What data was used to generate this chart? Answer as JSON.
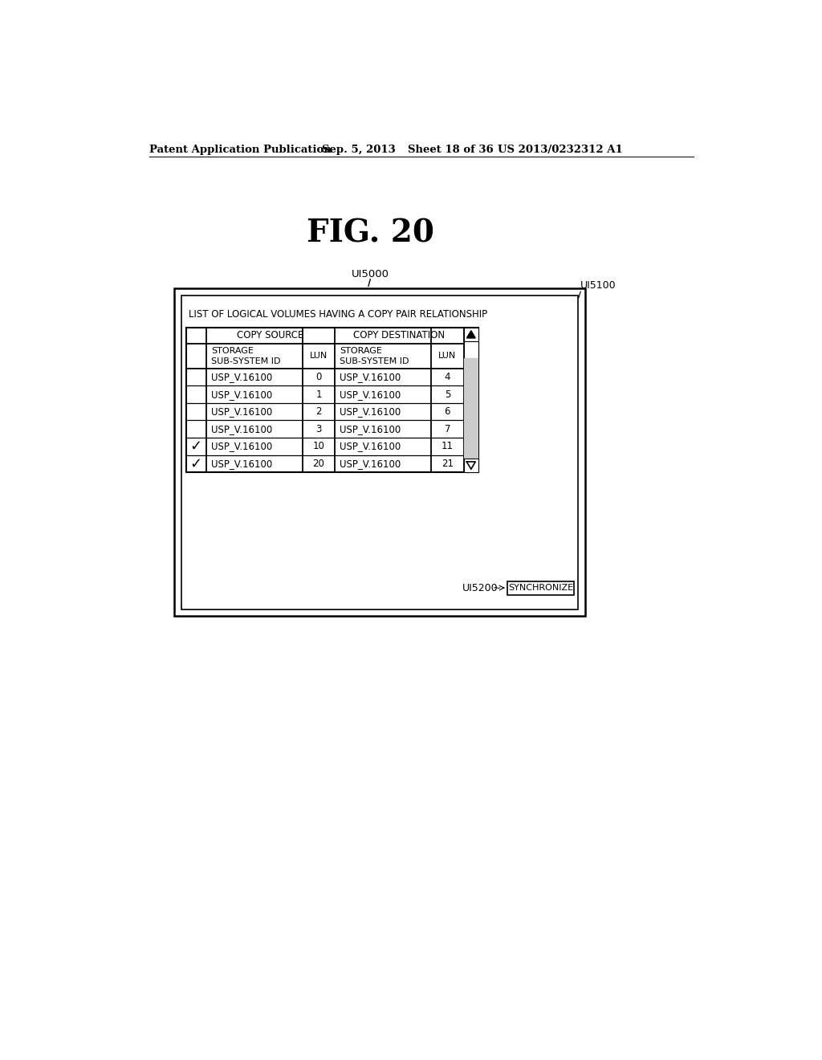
{
  "bg_color": "#ffffff",
  "header_line1": "Patent Application Publication",
  "header_date": "Sep. 5, 2013",
  "header_sheet": "Sheet 18 of 36",
  "header_patent": "US 2013/0232312 A1",
  "fig_label": "FIG. 20",
  "ui5000_label": "UI5000",
  "ui5100_label": "UI5100",
  "ui5200_label": "UI5200",
  "list_title": "LIST OF LOGICAL VOLUMES HAVING A COPY PAIR RELATIONSHIP",
  "col_header1": "COPY SOURCE",
  "col_header2": "COPY DESTINATION",
  "sub_col1": "STORAGE\nSUB-SYSTEM ID",
  "sub_col2": "LUN",
  "sub_col3": "STORAGE\nSUB-SYSTEM ID",
  "sub_col4": "LUN",
  "rows": [
    {
      "check": false,
      "src_id": "USP_V.16100",
      "src_lun": "0",
      "dst_id": "USP_V.16100",
      "dst_lun": "4"
    },
    {
      "check": false,
      "src_id": "USP_V.16100",
      "src_lun": "1",
      "dst_id": "USP_V.16100",
      "dst_lun": "5"
    },
    {
      "check": false,
      "src_id": "USP_V.16100",
      "src_lun": "2",
      "dst_id": "USP_V.16100",
      "dst_lun": "6"
    },
    {
      "check": false,
      "src_id": "USP_V.16100",
      "src_lun": "3",
      "dst_id": "USP_V.16100",
      "dst_lun": "7"
    },
    {
      "check": true,
      "src_id": "USP_V.16100",
      "src_lun": "10",
      "dst_id": "USP_V.16100",
      "dst_lun": "11"
    },
    {
      "check": true,
      "src_id": "USP_V.16100",
      "src_lun": "20",
      "dst_id": "USP_V.16100",
      "dst_lun": "21"
    }
  ],
  "sync_button": "SYNCHRONIZE"
}
